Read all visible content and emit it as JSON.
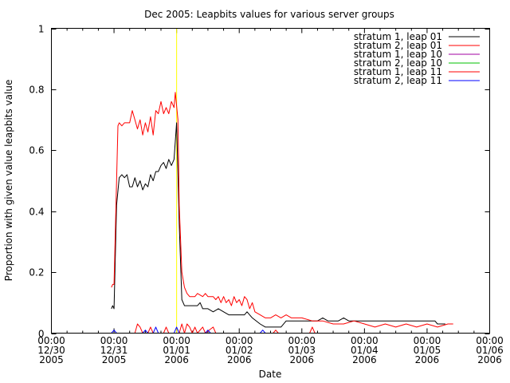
{
  "chart_data": {
    "type": "line",
    "title": "Dec 2005: Leapbits values for various server groups",
    "xlabel": "Date",
    "ylabel": "Proportion with given value leapbits value",
    "ylim": [
      0,
      1
    ],
    "xlim": [
      "2005-12-30 00:00",
      "2006-01-06 00:00"
    ],
    "y_ticks": [
      "0",
      "0.2",
      "0.4",
      "0.6",
      "0.8",
      "1"
    ],
    "x_ticks": [
      {
        "time": "00:00",
        "date": "12/30",
        "year": "2005"
      },
      {
        "time": "00:00",
        "date": "12/31",
        "year": "2005"
      },
      {
        "time": "00:00",
        "date": "01/01",
        "year": "2006"
      },
      {
        "time": "00:00",
        "date": "01/02",
        "year": "2006"
      },
      {
        "time": "00:00",
        "date": "01/03",
        "year": "2006"
      },
      {
        "time": "00:00",
        "date": "01/04",
        "year": "2006"
      },
      {
        "time": "00:00",
        "date": "01/05",
        "year": "2006"
      },
      {
        "time": "00:00",
        "date": "01/06",
        "year": "2006"
      }
    ],
    "legend_position": "top-right",
    "grid": false,
    "annotations": [
      {
        "type": "vertical-line",
        "x": "2006-01-01 00:00",
        "color": "#ffff00"
      }
    ],
    "series": [
      {
        "name": "stratum 1, leap 01",
        "color": "#000000",
        "points": [
          [
            "2005-12-30 23:00",
            0.08
          ],
          [
            "2005-12-30 23:30",
            0.09
          ],
          [
            "2005-12-31 00:00",
            0.08
          ],
          [
            "2005-12-31 01:00",
            0.42
          ],
          [
            "2005-12-31 02:00",
            0.51
          ],
          [
            "2005-12-31 03:00",
            0.52
          ],
          [
            "2005-12-31 04:00",
            0.51
          ],
          [
            "2005-12-31 05:00",
            0.52
          ],
          [
            "2005-12-31 06:00",
            0.48
          ],
          [
            "2005-12-31 07:00",
            0.48
          ],
          [
            "2005-12-31 08:00",
            0.51
          ],
          [
            "2005-12-31 09:00",
            0.48
          ],
          [
            "2005-12-31 10:00",
            0.5
          ],
          [
            "2005-12-31 11:00",
            0.47
          ],
          [
            "2005-12-31 12:00",
            0.49
          ],
          [
            "2005-12-31 13:00",
            0.48
          ],
          [
            "2005-12-31 14:00",
            0.52
          ],
          [
            "2005-12-31 15:00",
            0.5
          ],
          [
            "2005-12-31 16:00",
            0.53
          ],
          [
            "2005-12-31 17:00",
            0.53
          ],
          [
            "2005-12-31 18:00",
            0.55
          ],
          [
            "2005-12-31 19:00",
            0.56
          ],
          [
            "2005-12-31 20:00",
            0.54
          ],
          [
            "2005-12-31 21:00",
            0.57
          ],
          [
            "2005-12-31 22:00",
            0.55
          ],
          [
            "2005-12-31 23:00",
            0.57
          ],
          [
            "2006-01-01 00:00",
            0.69
          ],
          [
            "2006-01-01 01:00",
            0.36
          ],
          [
            "2006-01-01 02:00",
            0.11
          ],
          [
            "2006-01-01 03:00",
            0.09
          ],
          [
            "2006-01-01 05:00",
            0.09
          ],
          [
            "2006-01-01 08:00",
            0.09
          ],
          [
            "2006-01-01 09:00",
            0.1
          ],
          [
            "2006-01-01 10:00",
            0.08
          ],
          [
            "2006-01-01 12:00",
            0.08
          ],
          [
            "2006-01-01 14:00",
            0.07
          ],
          [
            "2006-01-01 16:00",
            0.08
          ],
          [
            "2006-01-01 18:00",
            0.07
          ],
          [
            "2006-01-01 20:00",
            0.06
          ],
          [
            "2006-01-01 22:00",
            0.06
          ],
          [
            "2006-01-02 00:00",
            0.06
          ],
          [
            "2006-01-02 02:00",
            0.06
          ],
          [
            "2006-01-02 03:00",
            0.07
          ],
          [
            "2006-01-02 05:00",
            0.05
          ],
          [
            "2006-01-02 08:00",
            0.03
          ],
          [
            "2006-01-02 10:00",
            0.02
          ],
          [
            "2006-01-02 16:00",
            0.02
          ],
          [
            "2006-01-02 18:00",
            0.04
          ],
          [
            "2006-01-03 00:00",
            0.04
          ],
          [
            "2006-01-03 06:00",
            0.04
          ],
          [
            "2006-01-03 08:00",
            0.05
          ],
          [
            "2006-01-03 10:00",
            0.04
          ],
          [
            "2006-01-03 14:00",
            0.04
          ],
          [
            "2006-01-03 16:00",
            0.05
          ],
          [
            "2006-01-03 18:00",
            0.04
          ],
          [
            "2006-01-04 00:00",
            0.04
          ],
          [
            "2006-01-04 06:00",
            0.04
          ],
          [
            "2006-01-04 12:00",
            0.04
          ],
          [
            "2006-01-04 18:00",
            0.04
          ],
          [
            "2006-01-05 00:00",
            0.04
          ],
          [
            "2006-01-05 03:00",
            0.04
          ],
          [
            "2006-01-05 04:00",
            0.03
          ],
          [
            "2006-01-05 07:00",
            0.03
          ]
        ]
      },
      {
        "name": "stratum 2, leap 01",
        "color": "#ff0000",
        "points": [
          [
            "2005-12-30 23:00",
            0.15
          ],
          [
            "2005-12-30 23:30",
            0.16
          ],
          [
            "2005-12-31 00:00",
            0.16
          ],
          [
            "2005-12-31 01:00",
            0.5
          ],
          [
            "2005-12-31 01:30",
            0.68
          ],
          [
            "2005-12-31 02:00",
            0.69
          ],
          [
            "2005-12-31 03:00",
            0.68
          ],
          [
            "2005-12-31 04:00",
            0.69
          ],
          [
            "2005-12-31 05:00",
            0.69
          ],
          [
            "2005-12-31 06:00",
            0.69
          ],
          [
            "2005-12-31 07:00",
            0.73
          ],
          [
            "2005-12-31 08:00",
            0.7
          ],
          [
            "2005-12-31 09:00",
            0.67
          ],
          [
            "2005-12-31 10:00",
            0.7
          ],
          [
            "2005-12-31 11:00",
            0.65
          ],
          [
            "2005-12-31 12:00",
            0.69
          ],
          [
            "2005-12-31 13:00",
            0.66
          ],
          [
            "2005-12-31 14:00",
            0.71
          ],
          [
            "2005-12-31 15:00",
            0.65
          ],
          [
            "2005-12-31 16:00",
            0.73
          ],
          [
            "2005-12-31 17:00",
            0.72
          ],
          [
            "2005-12-31 18:00",
            0.76
          ],
          [
            "2005-12-31 19:00",
            0.72
          ],
          [
            "2005-12-31 20:00",
            0.74
          ],
          [
            "2005-12-31 21:00",
            0.72
          ],
          [
            "2005-12-31 22:00",
            0.76
          ],
          [
            "2005-12-31 23:00",
            0.74
          ],
          [
            "2005-12-31 23:30",
            0.79
          ],
          [
            "2006-01-01 00:30",
            0.7
          ],
          [
            "2006-01-01 01:00",
            0.42
          ],
          [
            "2006-01-01 02:00",
            0.2
          ],
          [
            "2006-01-01 03:00",
            0.15
          ],
          [
            "2006-01-01 04:00",
            0.13
          ],
          [
            "2006-01-01 05:00",
            0.12
          ],
          [
            "2006-01-01 07:00",
            0.12
          ],
          [
            "2006-01-01 08:00",
            0.13
          ],
          [
            "2006-01-01 10:00",
            0.12
          ],
          [
            "2006-01-01 11:00",
            0.13
          ],
          [
            "2006-01-01 12:00",
            0.12
          ],
          [
            "2006-01-01 14:00",
            0.12
          ],
          [
            "2006-01-01 15:00",
            0.11
          ],
          [
            "2006-01-01 16:00",
            0.12
          ],
          [
            "2006-01-01 17:00",
            0.1
          ],
          [
            "2006-01-01 18:00",
            0.12
          ],
          [
            "2006-01-01 19:00",
            0.1
          ],
          [
            "2006-01-01 20:00",
            0.11
          ],
          [
            "2006-01-01 21:00",
            0.09
          ],
          [
            "2006-01-01 22:00",
            0.12
          ],
          [
            "2006-01-01 23:00",
            0.1
          ],
          [
            "2006-01-02 00:00",
            0.11
          ],
          [
            "2006-01-02 01:00",
            0.09
          ],
          [
            "2006-01-02 02:00",
            0.12
          ],
          [
            "2006-01-02 03:00",
            0.11
          ],
          [
            "2006-01-02 04:00",
            0.08
          ],
          [
            "2006-01-02 05:00",
            0.1
          ],
          [
            "2006-01-02 06:00",
            0.07
          ],
          [
            "2006-01-02 08:00",
            0.06
          ],
          [
            "2006-01-02 10:00",
            0.05
          ],
          [
            "2006-01-02 12:00",
            0.05
          ],
          [
            "2006-01-02 14:00",
            0.06
          ],
          [
            "2006-01-02 16:00",
            0.05
          ],
          [
            "2006-01-02 18:00",
            0.06
          ],
          [
            "2006-01-02 20:00",
            0.05
          ],
          [
            "2006-01-03 00:00",
            0.05
          ],
          [
            "2006-01-03 04:00",
            0.04
          ],
          [
            "2006-01-03 08:00",
            0.04
          ],
          [
            "2006-01-03 12:00",
            0.03
          ],
          [
            "2006-01-03 16:00",
            0.03
          ],
          [
            "2006-01-03 20:00",
            0.04
          ],
          [
            "2006-01-04 00:00",
            0.03
          ],
          [
            "2006-01-04 04:00",
            0.02
          ],
          [
            "2006-01-04 08:00",
            0.03
          ],
          [
            "2006-01-04 12:00",
            0.02
          ],
          [
            "2006-01-04 16:00",
            0.03
          ],
          [
            "2006-01-04 20:00",
            0.02
          ],
          [
            "2006-01-05 00:00",
            0.03
          ],
          [
            "2006-01-05 04:00",
            0.02
          ],
          [
            "2006-01-05 08:00",
            0.03
          ],
          [
            "2006-01-05 10:00",
            0.03
          ]
        ]
      },
      {
        "name": "stratum 1, leap 10",
        "color": "#a000a0",
        "points": [
          [
            "2005-12-30 23:00",
            0.0
          ],
          [
            "2005-12-31 00:00",
            0.0
          ],
          [
            "2005-12-31 12:00",
            0.0
          ],
          [
            "2006-01-01 00:00",
            0.0
          ],
          [
            "2006-01-02 00:00",
            0.0
          ],
          [
            "2006-01-03 00:00",
            0.0
          ],
          [
            "2006-01-04 00:00",
            0.0
          ],
          [
            "2006-01-05 00:00",
            0.0
          ],
          [
            "2006-01-05 10:00",
            0.0
          ]
        ]
      },
      {
        "name": "stratum 2, leap 10",
        "color": "#00c000",
        "points": [
          [
            "2005-12-30 23:00",
            0.0
          ],
          [
            "2005-12-31 00:00",
            0.0
          ],
          [
            "2005-12-31 12:00",
            0.0
          ],
          [
            "2006-01-01 00:00",
            0.0
          ],
          [
            "2006-01-02 00:00",
            0.0
          ],
          [
            "2006-01-03 00:00",
            0.0
          ],
          [
            "2006-01-04 00:00",
            0.0
          ],
          [
            "2006-01-05 00:00",
            0.0
          ],
          [
            "2006-01-05 10:00",
            0.0
          ]
        ]
      },
      {
        "name": "stratum 1, leap 11",
        "color": "#ff0000",
        "points": [
          [
            "2005-12-30 23:00",
            0.0
          ],
          [
            "2005-12-31 08:00",
            0.0
          ],
          [
            "2005-12-31 09:00",
            0.03
          ],
          [
            "2005-12-31 10:00",
            0.02
          ],
          [
            "2005-12-31 11:00",
            0.0
          ],
          [
            "2005-12-31 13:00",
            0.0
          ],
          [
            "2005-12-31 14:00",
            0.02
          ],
          [
            "2005-12-31 15:00",
            0.0
          ],
          [
            "2005-12-31 19:00",
            0.0
          ],
          [
            "2005-12-31 20:00",
            0.02
          ],
          [
            "2005-12-31 21:00",
            0.0
          ],
          [
            "2006-01-01 01:00",
            0.0
          ],
          [
            "2006-01-01 02:00",
            0.03
          ],
          [
            "2006-01-01 03:00",
            0.0
          ],
          [
            "2006-01-01 04:00",
            0.03
          ],
          [
            "2006-01-01 05:00",
            0.02
          ],
          [
            "2006-01-01 06:00",
            0.0
          ],
          [
            "2006-01-01 07:00",
            0.02
          ],
          [
            "2006-01-01 08:00",
            0.0
          ],
          [
            "2006-01-01 10:00",
            0.02
          ],
          [
            "2006-01-01 11:00",
            0.0
          ],
          [
            "2006-01-01 14:00",
            0.02
          ],
          [
            "2006-01-01 15:00",
            0.0
          ],
          [
            "2006-01-02 13:00",
            0.0
          ],
          [
            "2006-01-02 14:00",
            0.01
          ],
          [
            "2006-01-02 15:00",
            0.0
          ],
          [
            "2006-01-03 03:00",
            0.0
          ],
          [
            "2006-01-03 04:00",
            0.02
          ],
          [
            "2006-01-03 05:00",
            0.0
          ],
          [
            "2006-01-05 10:00",
            0.0
          ]
        ]
      },
      {
        "name": "stratum 2, leap 11",
        "color": "#0000ff",
        "points": [
          [
            "2005-12-30 23:00",
            0.0
          ],
          [
            "2005-12-31 00:00",
            0.01
          ],
          [
            "2005-12-31 01:00",
            0.0
          ],
          [
            "2005-12-31 11:00",
            0.0
          ],
          [
            "2005-12-31 12:00",
            0.01
          ],
          [
            "2005-12-31 13:00",
            0.0
          ],
          [
            "2005-12-31 15:00",
            0.0
          ],
          [
            "2005-12-31 16:00",
            0.02
          ],
          [
            "2005-12-31 17:00",
            0.0
          ],
          [
            "2005-12-31 23:00",
            0.0
          ],
          [
            "2006-01-01 00:00",
            0.02
          ],
          [
            "2006-01-01 01:00",
            0.0
          ],
          [
            "2006-01-01 11:00",
            0.0
          ],
          [
            "2006-01-01 12:00",
            0.01
          ],
          [
            "2006-01-01 13:00",
            0.0
          ],
          [
            "2006-01-02 08:00",
            0.0
          ],
          [
            "2006-01-02 09:00",
            0.01
          ],
          [
            "2006-01-02 10:00",
            0.0
          ],
          [
            "2006-01-05 10:00",
            0.0
          ]
        ]
      }
    ]
  }
}
